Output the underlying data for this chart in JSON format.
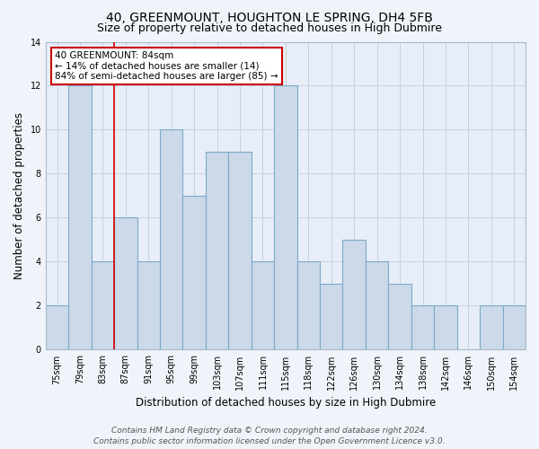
{
  "title": "40, GREENMOUNT, HOUGHTON LE SPRING, DH4 5FB",
  "subtitle": "Size of property relative to detached houses in High Dubmire",
  "xlabel": "Distribution of detached houses by size in High Dubmire",
  "ylabel": "Number of detached properties",
  "bar_labels": [
    "75sqm",
    "79sqm",
    "83sqm",
    "87sqm",
    "91sqm",
    "95sqm",
    "99sqm",
    "103sqm",
    "107sqm",
    "111sqm",
    "115sqm",
    "118sqm",
    "122sqm",
    "126sqm",
    "130sqm",
    "134sqm",
    "138sqm",
    "142sqm",
    "146sqm",
    "150sqm",
    "154sqm"
  ],
  "bar_values": [
    2,
    12,
    4,
    6,
    4,
    10,
    7,
    9,
    9,
    4,
    12,
    4,
    3,
    5,
    4,
    3,
    2,
    2,
    0,
    2,
    2
  ],
  "bar_color": "#ccd9e8",
  "bar_edge_color": "#7aaac8",
  "highlight_x_label": "83sqm",
  "highlight_line_color": "#cc0000",
  "annotation_title": "40 GREENMOUNT: 84sqm",
  "annotation_line1": "← 14% of detached houses are smaller (14)",
  "annotation_line2": "84% of semi-detached houses are larger (85) →",
  "annotation_box_color": "#ffffff",
  "annotation_border_color": "#cc0000",
  "ylim": [
    0,
    14
  ],
  "yticks": [
    0,
    2,
    4,
    6,
    8,
    10,
    12,
    14
  ],
  "footer_line1": "Contains HM Land Registry data © Crown copyright and database right 2024.",
  "footer_line2": "Contains public sector information licensed under the Open Government Licence v3.0.",
  "background_color": "#f0f4fa",
  "plot_bg_color": "#e8eef8",
  "grid_color": "#c8d0e0",
  "title_fontsize": 10,
  "subtitle_fontsize": 9,
  "axis_label_fontsize": 8.5,
  "tick_fontsize": 7,
  "annotation_fontsize": 7.5,
  "footer_fontsize": 6.5
}
